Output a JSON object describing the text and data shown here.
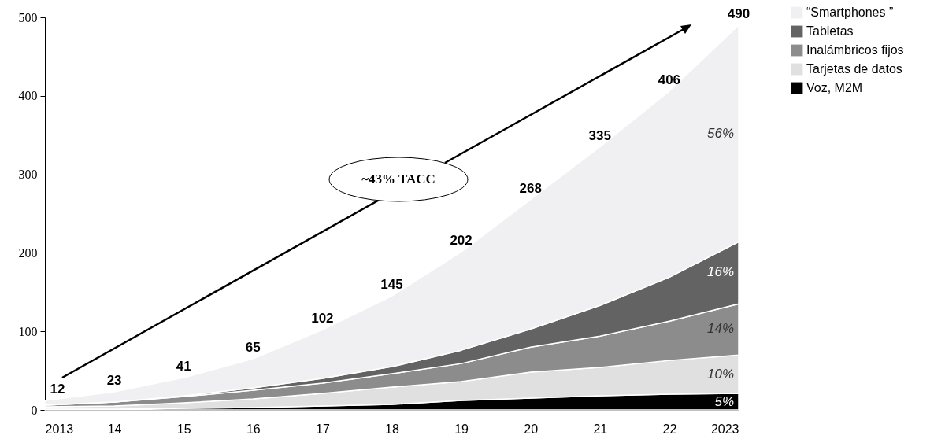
{
  "chart_data": {
    "type": "area",
    "stacked": true,
    "categories": [
      "2013",
      "14",
      "15",
      "16",
      "17",
      "18",
      "19",
      "20",
      "21",
      "22",
      "2023"
    ],
    "series": [
      {
        "name": "Voz, M2M",
        "color": "#000000",
        "values": [
          1,
          1,
          2,
          3,
          5,
          7,
          12,
          15,
          18,
          20,
          21
        ]
      },
      {
        "name": "Tarjetas de datos",
        "color": "#e0e0e0",
        "values": [
          3,
          4,
          7,
          11,
          16,
          22,
          24,
          33,
          36,
          43,
          49
        ]
      },
      {
        "name": "Inalámbricos fijos",
        "color": "#8c8c8c",
        "values": [
          2,
          5,
          8,
          11,
          13,
          17,
          23,
          32,
          40,
          50,
          65
        ]
      },
      {
        "name": "Tabletas",
        "color": "#636363",
        "values": [
          0,
          0,
          1,
          3,
          6,
          9,
          17,
          23,
          39,
          56,
          79
        ]
      },
      {
        "name": "“Smartphones ”",
        "color": "#f0eff2",
        "values": [
          6,
          13,
          23,
          37,
          62,
          90,
          125,
          165,
          202,
          237,
          276
        ]
      }
    ],
    "totals": [
      "12",
      "23",
      "41",
      "65",
      "102",
      "145",
      "202",
      "268",
      "335",
      "406",
      "490"
    ],
    "ylim": [
      0,
      500
    ],
    "yticks": [
      0,
      100,
      200,
      300,
      400,
      500
    ],
    "grid": false,
    "legend": "top right",
    "annotations": [
      "~43% TACC",
      {
        "text": "56%",
        "x": "2023",
        "y": 352
      },
      {
        "text": "16%",
        "x": "2023",
        "y": 175
      },
      {
        "text": "14%",
        "x": "2023",
        "y": 103
      },
      {
        "text": "10%",
        "x": "2023",
        "y": 45
      },
      {
        "text": "5%",
        "x": "2023",
        "y": 10
      }
    ]
  }
}
